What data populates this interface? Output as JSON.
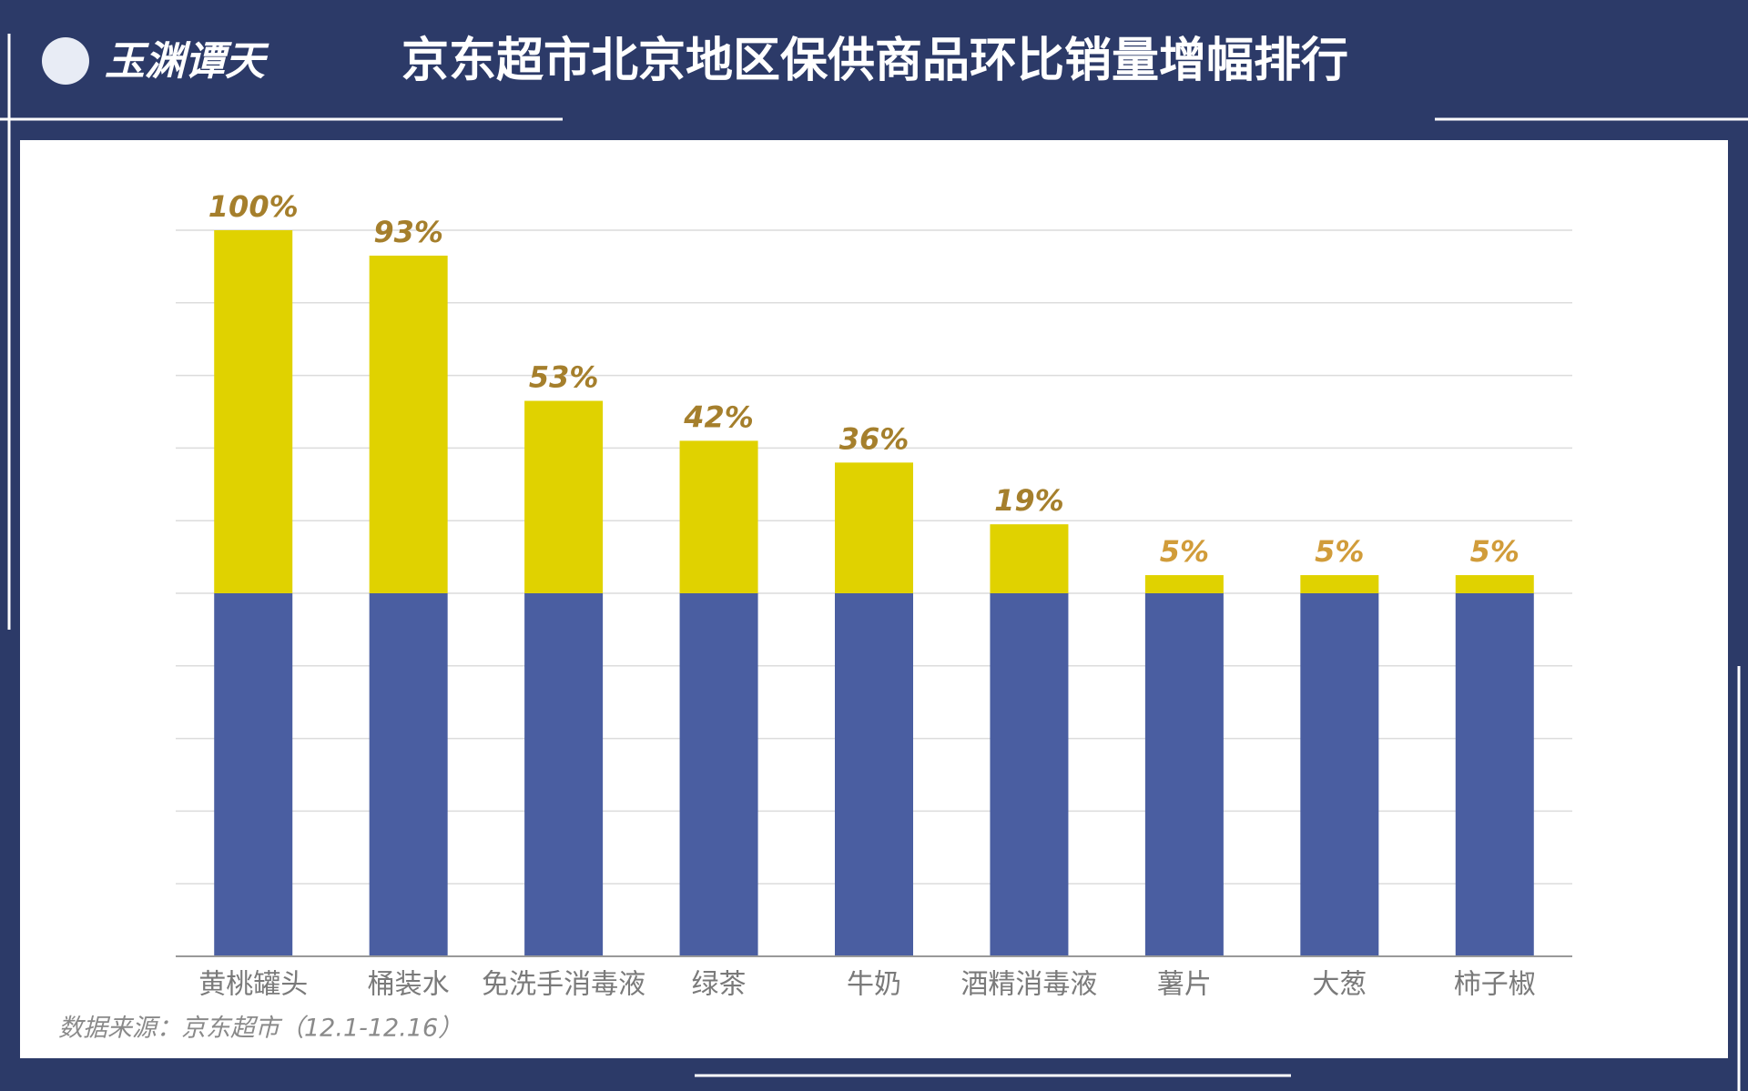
{
  "logo": "玉渊谭天",
  "chart_data": {
    "type": "stacked-bar",
    "title": "京东超市北京地区保供商品环比销量增幅排行",
    "source": "数据来源：京东超市（12.1-12.16）",
    "categories": [
      "黄桃罐头",
      "桶装水",
      "免洗手消毒液",
      "绿茶",
      "牛奶",
      "酒精消毒液",
      "薯片",
      "大葱",
      "柿子椒"
    ],
    "series": [
      {
        "color": "#4a5ea1",
        "values": [
          100,
          100,
          100,
          100,
          100,
          100,
          100,
          100,
          100
        ]
      },
      {
        "color": "#e0d200",
        "values": [
          100,
          93,
          53,
          42,
          36,
          19,
          5,
          5,
          5
        ],
        "value_labels": [
          "100%",
          "93%",
          "53%",
          "42%",
          "36%",
          "19%",
          "5%",
          "5%",
          "5%"
        ]
      }
    ],
    "ylim": [
      0,
      200
    ],
    "yticks": [
      0,
      20,
      40,
      60,
      80,
      100,
      120,
      140,
      160,
      180,
      200
    ],
    "grid": true
  }
}
